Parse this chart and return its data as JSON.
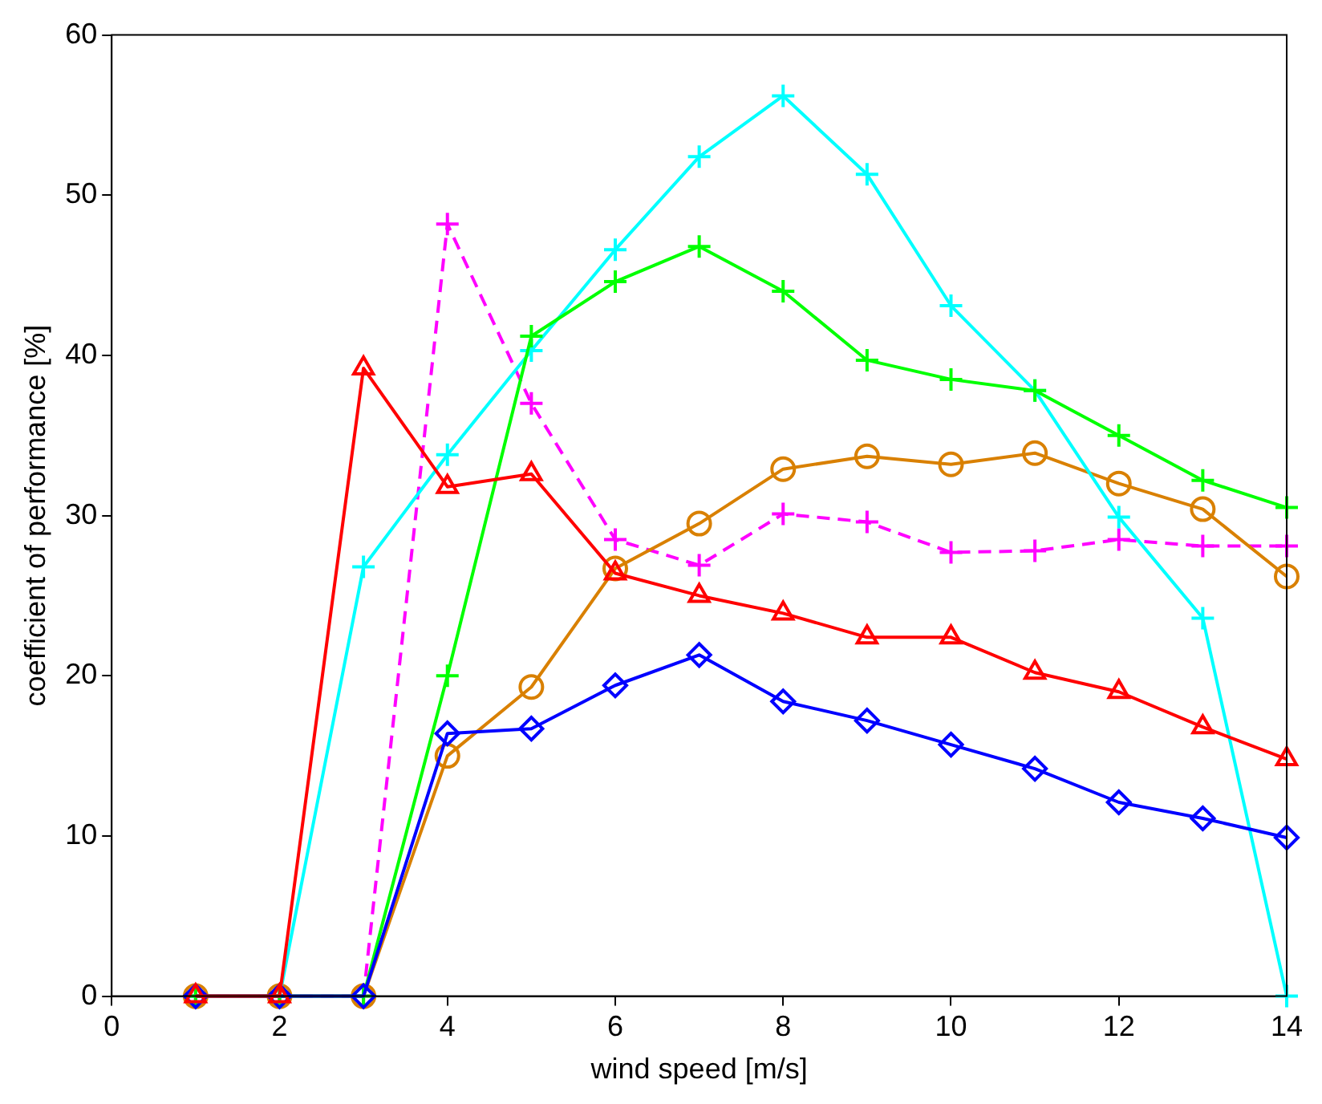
{
  "chart_data": {
    "type": "line",
    "xlabel": "wind speed [m/s]",
    "ylabel": "coefficient of performance [%]",
    "x": [
      1,
      2,
      3,
      4,
      5,
      6,
      7,
      8,
      9,
      10,
      11,
      12,
      13,
      14
    ],
    "xlim": [
      0,
      14
    ],
    "xticks": [
      0,
      2,
      4,
      6,
      8,
      10,
      12,
      14
    ],
    "ylim": [
      0,
      60
    ],
    "yticks": [
      0,
      10,
      20,
      30,
      40,
      50,
      60
    ],
    "grid": false,
    "legend": false,
    "line_style": "solid",
    "series": [
      {
        "color": "#ff0000",
        "marker": "triangle",
        "values": [
          0,
          0,
          39.2,
          31.8,
          32.6,
          26.4,
          25,
          23.9,
          22.4,
          22.4,
          20.2,
          19,
          16.8,
          14.8
        ]
      },
      {
        "color": "#0000ff",
        "marker": "diamond",
        "values": [
          0,
          0,
          0,
          16.4,
          16.7,
          19.4,
          21.3,
          18.4,
          17.2,
          15.7,
          14.2,
          12.1,
          11.1,
          9.9
        ]
      },
      {
        "color": "#00ff00",
        "marker": "cross",
        "values": [
          0,
          0,
          0,
          20,
          41.2,
          44.6,
          46.8,
          44,
          39.7,
          38.5,
          37.8,
          35,
          32.2,
          30.5
        ]
      },
      {
        "color": "#00ffff",
        "marker": "cross",
        "values": [
          0,
          0,
          26.8,
          33.8,
          40.3,
          46.6,
          52.4,
          56.2,
          51.3,
          43.1,
          37.8,
          29.9,
          23.6,
          0
        ]
      },
      {
        "color": "#d98000",
        "marker": "circle",
        "values": [
          0,
          0,
          0,
          15,
          19.3,
          26.7,
          29.5,
          32.9,
          33.7,
          33.2,
          33.9,
          32,
          30.4,
          26.2
        ]
      },
      {
        "color": "#ff00ff",
        "marker": "cross",
        "line_style": "dashed",
        "values": [
          0,
          0,
          0,
          48.2,
          37,
          28.5,
          26.9,
          30.1,
          29.6,
          27.7,
          27.8,
          28.5,
          28.1,
          28.1
        ]
      }
    ]
  }
}
